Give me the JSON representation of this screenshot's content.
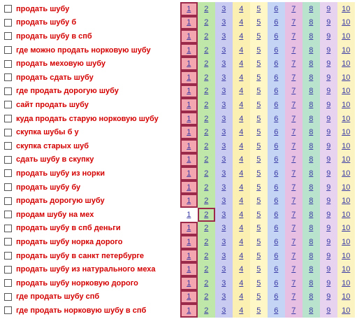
{
  "positions": [
    "1",
    "2",
    "3",
    "4",
    "5",
    "6",
    "7",
    "8",
    "9",
    "10"
  ],
  "colors": {
    "keyword": "#d40000",
    "link": "#3a3aa6",
    "hit_border": "#9b2a4a",
    "cells": [
      "#f4a6b0",
      "#bfe7a9",
      "#c9ccf0",
      "#fbefb2",
      "#fff7c6",
      "#c3d4f4",
      "#e6bfe3",
      "#b9e3cc",
      "#e7d3f0",
      "#fbf3c1"
    ],
    "empty": "#ffffff"
  },
  "rows": [
    {
      "keyword": "продать шубу",
      "hit": 1
    },
    {
      "keyword": "продать шубу б",
      "hit": 1
    },
    {
      "keyword": "продать шубу в спб",
      "hit": 1
    },
    {
      "keyword": "где можно продать норковую шубу",
      "hit": 1
    },
    {
      "keyword": "продать меховую шубу",
      "hit": 1
    },
    {
      "keyword": "продать сдать шубу",
      "hit": 1
    },
    {
      "keyword": "где продать дорогую шубу",
      "hit": 1
    },
    {
      "keyword": "сайт продать шубу",
      "hit": 1
    },
    {
      "keyword": "куда продать старую норковую шубу",
      "hit": 1
    },
    {
      "keyword": "скупка шубы б у",
      "hit": 1
    },
    {
      "keyword": "скупка старых шуб",
      "hit": 1
    },
    {
      "keyword": "сдать шубу в скупку",
      "hit": 1
    },
    {
      "keyword": "продать шубу из норки",
      "hit": 1
    },
    {
      "keyword": "продать шубу бу",
      "hit": 1
    },
    {
      "keyword": "продать дорогую шубу",
      "hit": 1
    },
    {
      "keyword": "продам шубу на мех",
      "hit": 2
    },
    {
      "keyword": "продать шубу в спб деньги",
      "hit": 1
    },
    {
      "keyword": "продать шубу норка дорого",
      "hit": 1
    },
    {
      "keyword": "продать шубу в санкт петербурге",
      "hit": 1
    },
    {
      "keyword": "продать шубу из натурального меха",
      "hit": 1
    },
    {
      "keyword": "продать шубу норковую дорого",
      "hit": 1
    },
    {
      "keyword": "где продать шубу спб",
      "hit": 1
    },
    {
      "keyword": "где продать норковую шубу в спб",
      "hit": 1
    }
  ]
}
